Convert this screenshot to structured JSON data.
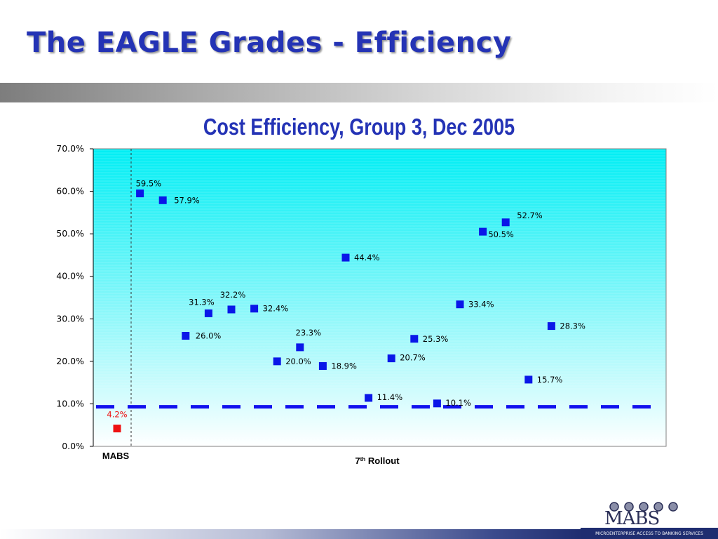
{
  "slide": {
    "title": "The EAGLE Grades - Efficiency"
  },
  "colors": {
    "title": "#2433b5",
    "point": "#0a17e8",
    "highlight": "#ee1111",
    "reference_line": "#1111ee",
    "plot_top": "#00eef4",
    "plot_bottom": "#ffffff"
  },
  "chart_data": {
    "type": "scatter",
    "title": "Cost Efficiency, Group 3,  Dec 2005",
    "ylim": [
      0,
      70
    ],
    "yticks": [
      "0.0%",
      "10.0%",
      "20.0%",
      "30.0%",
      "40.0%",
      "50.0%",
      "60.0%",
      "70.0%"
    ],
    "yformat": "percent",
    "grid": false,
    "group_labels": [
      {
        "text": "MABS",
        "superscript": "",
        "suffix": ""
      },
      {
        "text": "7",
        "superscript": "th",
        "suffix": " Rollout"
      }
    ],
    "reference_line": {
      "y": 9.3,
      "style": "dashed"
    },
    "series": [
      {
        "points": [
          {
            "x": 1,
            "y": 4.2,
            "label": "4.2%",
            "highlight": true
          },
          {
            "x": 2,
            "y": 59.5,
            "label": "59.5%"
          },
          {
            "x": 3,
            "y": 57.9,
            "label": "57.9%"
          },
          {
            "x": 4,
            "y": 26.0,
            "label": "26.0%"
          },
          {
            "x": 5,
            "y": 31.3,
            "label": "31.3%"
          },
          {
            "x": 6,
            "y": 32.2,
            "label": "32.2%"
          },
          {
            "x": 7,
            "y": 32.4,
            "label": "32.4%"
          },
          {
            "x": 8,
            "y": 20.0,
            "label": "20.0%"
          },
          {
            "x": 9,
            "y": 23.3,
            "label": "23.3%"
          },
          {
            "x": 10,
            "y": 18.9,
            "label": "18.9%"
          },
          {
            "x": 11,
            "y": 44.4,
            "label": "44.4%"
          },
          {
            "x": 12,
            "y": 11.4,
            "label": "11.4%"
          },
          {
            "x": 13,
            "y": 20.7,
            "label": "20.7%"
          },
          {
            "x": 14,
            "y": 25.3,
            "label": "25.3%"
          },
          {
            "x": 15,
            "y": 10.1,
            "label": "10.1%"
          },
          {
            "x": 16,
            "y": 33.4,
            "label": "33.4%"
          },
          {
            "x": 17,
            "y": 50.5,
            "label": "50.5%"
          },
          {
            "x": 18,
            "y": 52.7,
            "label": "52.7%"
          },
          {
            "x": 19,
            "y": 15.7,
            "label": "15.7%"
          },
          {
            "x": 20,
            "y": 28.3,
            "label": "28.3%"
          }
        ]
      }
    ]
  },
  "logo": {
    "wordmark": "MABS",
    "caption": "MICROENTERPRISE ACCESS TO BANKING SERVICES"
  }
}
